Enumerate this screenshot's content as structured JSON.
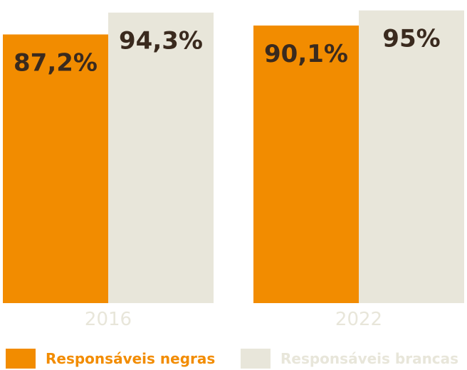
{
  "chart_data": {
    "type": "bar",
    "categories": [
      "2016",
      "2022"
    ],
    "series": [
      {
        "name": "Responsáveis negras",
        "values": [
          87.2,
          90.1
        ],
        "labels": [
          "87,2%",
          "90,1%"
        ],
        "color": "#F28C00"
      },
      {
        "name": "Responsáveis brancas",
        "values": [
          94.3,
          95
        ],
        "labels": [
          "94,3%",
          "95%"
        ],
        "color": "#E8E6DA"
      }
    ],
    "title": "",
    "xlabel": "",
    "ylabel": "",
    "ylim": [
      0,
      100
    ],
    "grid": false,
    "legend": "bottom",
    "label_color": "#3A2A1E",
    "tick_color": "#E8E6DA"
  }
}
